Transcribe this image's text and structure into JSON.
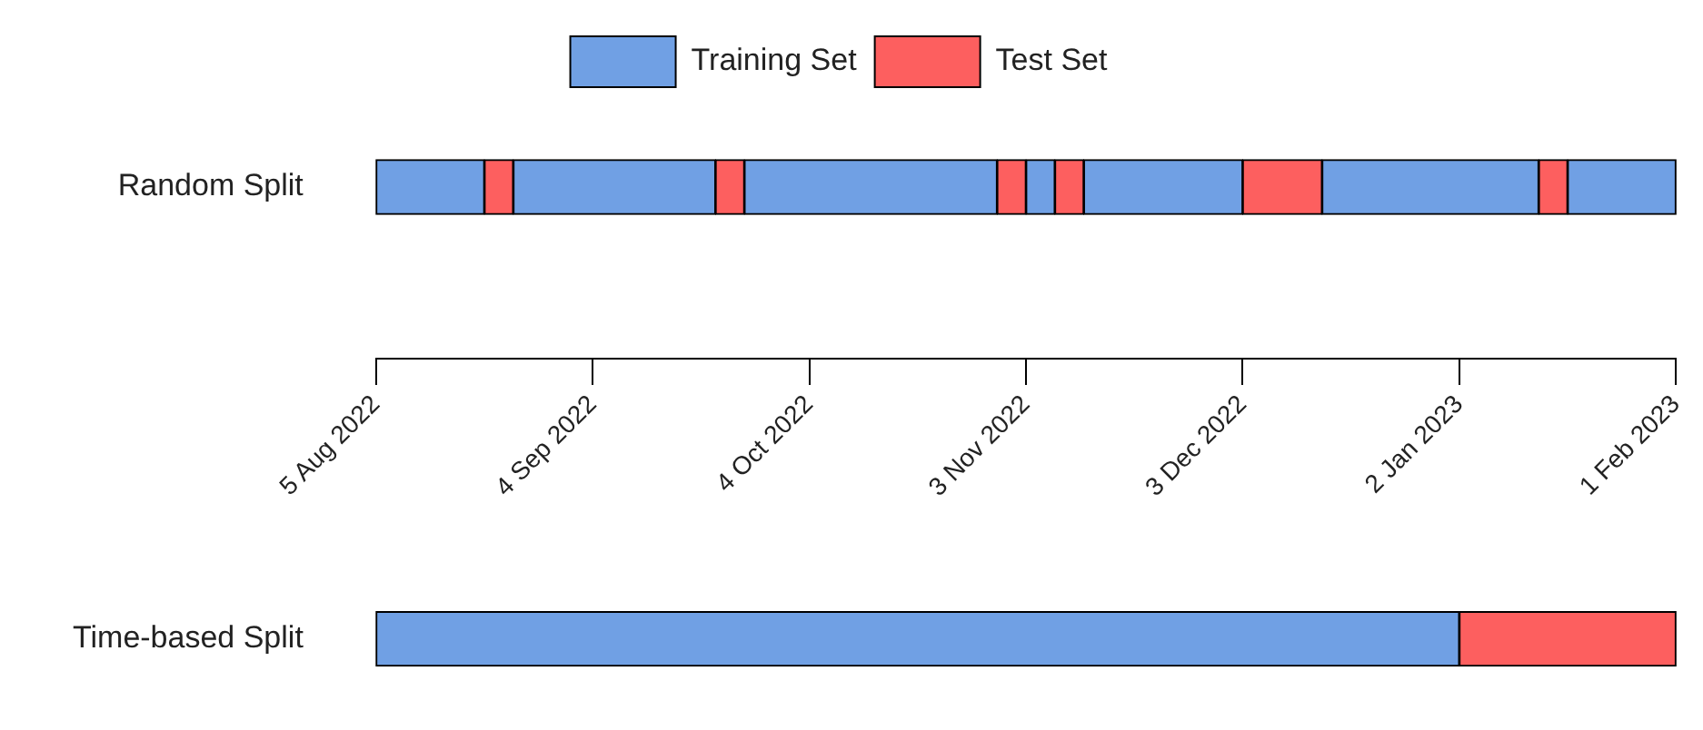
{
  "chart_data": {
    "type": "bar",
    "orientation": "horizontal",
    "legend": "top",
    "categories": [
      "Random Split",
      "Time-based Split"
    ],
    "xlim": [
      "2022-08-05",
      "2023-02-01"
    ],
    "xticks": [
      {
        "value": "2022-08-05",
        "label": "5 Aug 2022"
      },
      {
        "value": "2022-09-04",
        "label": "4 Sep 2022"
      },
      {
        "value": "2022-10-04",
        "label": "4 Oct 2022"
      },
      {
        "value": "2022-11-03",
        "label": "3 Nov 2022"
      },
      {
        "value": "2022-12-03",
        "label": "3 Dec 2022"
      },
      {
        "value": "2023-01-02",
        "label": "2 Jan 2023"
      },
      {
        "value": "2023-02-01",
        "label": "1 Feb 2023"
      }
    ],
    "series": [
      {
        "name": "Training Set",
        "color": "#70a0e4",
        "base": [
          19209,
          19209
        ],
        "values": [
          15,
          150
        ]
      },
      {
        "name": "Test Set",
        "color": "#fd5f5f",
        "base": [
          19224,
          19359
        ],
        "values": [
          4,
          30
        ]
      },
      {
        "color": "#70a0e4",
        "base": [
          19228,
          null
        ],
        "values": [
          28,
          null
        ]
      },
      {
        "color": "#fd5f5f",
        "base": [
          19256,
          null
        ],
        "values": [
          4,
          null
        ]
      },
      {
        "color": "#70a0e4",
        "base": [
          19260,
          null
        ],
        "values": [
          35,
          null
        ]
      },
      {
        "color": "#fd5f5f",
        "base": [
          19295,
          null
        ],
        "values": [
          4,
          null
        ]
      },
      {
        "color": "#70a0e4",
        "base": [
          19299,
          null
        ],
        "values": [
          4,
          null
        ]
      },
      {
        "color": "#fd5f5f",
        "base": [
          19303,
          null
        ],
        "values": [
          4,
          null
        ]
      },
      {
        "color": "#70a0e4",
        "base": [
          19307,
          null
        ],
        "values": [
          22,
          null
        ]
      },
      {
        "color": "#fd5f5f",
        "base": [
          19329,
          null
        ],
        "values": [
          11,
          null
        ]
      },
      {
        "color": "#70a0e4",
        "base": [
          19340,
          null
        ],
        "values": [
          30,
          null
        ]
      },
      {
        "color": "#fd5f5f",
        "base": [
          19370,
          null
        ],
        "values": [
          4,
          null
        ]
      },
      {
        "color": "#70a0e4",
        "base": [
          19374,
          null
        ],
        "values": [
          15,
          null
        ]
      }
    ]
  }
}
